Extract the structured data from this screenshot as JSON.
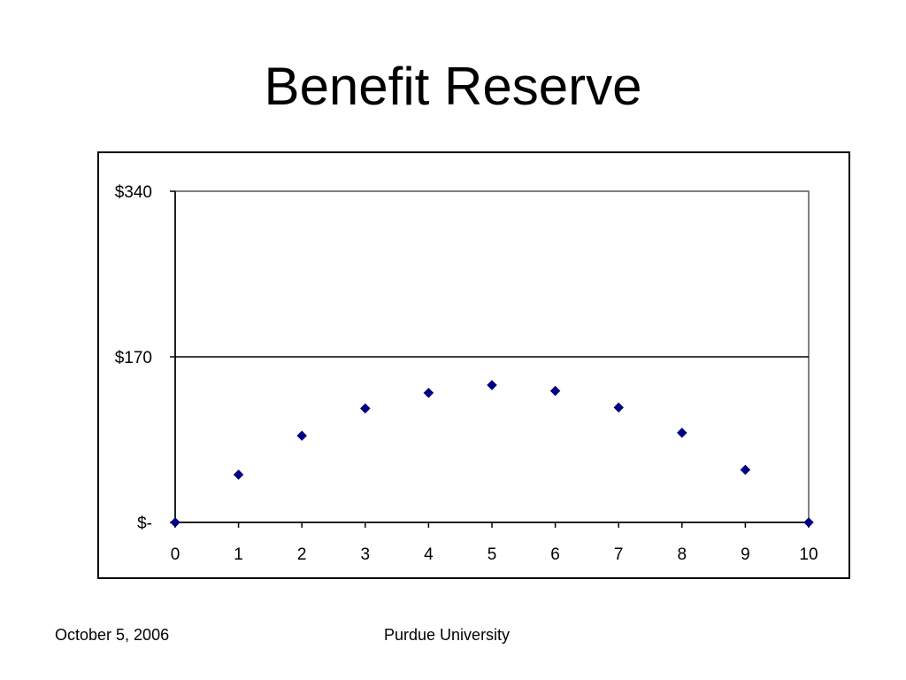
{
  "slide": {
    "title": "Benefit Reserve",
    "footer_date": "October 5, 2006",
    "footer_org": "Purdue University"
  },
  "chart_data": {
    "type": "scatter",
    "title": "",
    "xlabel": "",
    "ylabel": "",
    "x": [
      0,
      1,
      2,
      3,
      4,
      5,
      6,
      7,
      8,
      9,
      10
    ],
    "y": [
      0,
      49,
      89,
      117,
      133,
      141,
      135,
      118,
      92,
      54,
      0
    ],
    "xlim": [
      0,
      10
    ],
    "ylim": [
      0,
      340
    ],
    "x_ticks": [
      "0",
      "1",
      "2",
      "3",
      "4",
      "5",
      "6",
      "7",
      "8",
      "9",
      "10"
    ],
    "y_ticks": [
      {
        "value": 0,
        "label": "$-"
      },
      {
        "value": 170,
        "label": "$170"
      },
      {
        "value": 340,
        "label": "$340"
      }
    ],
    "grid": "horizontal",
    "legend": "none",
    "marker": "diamond",
    "colors": {
      "marker": "#000080",
      "gridline": "#000000",
      "plot_border": "#808080",
      "axis": "#000000"
    }
  }
}
